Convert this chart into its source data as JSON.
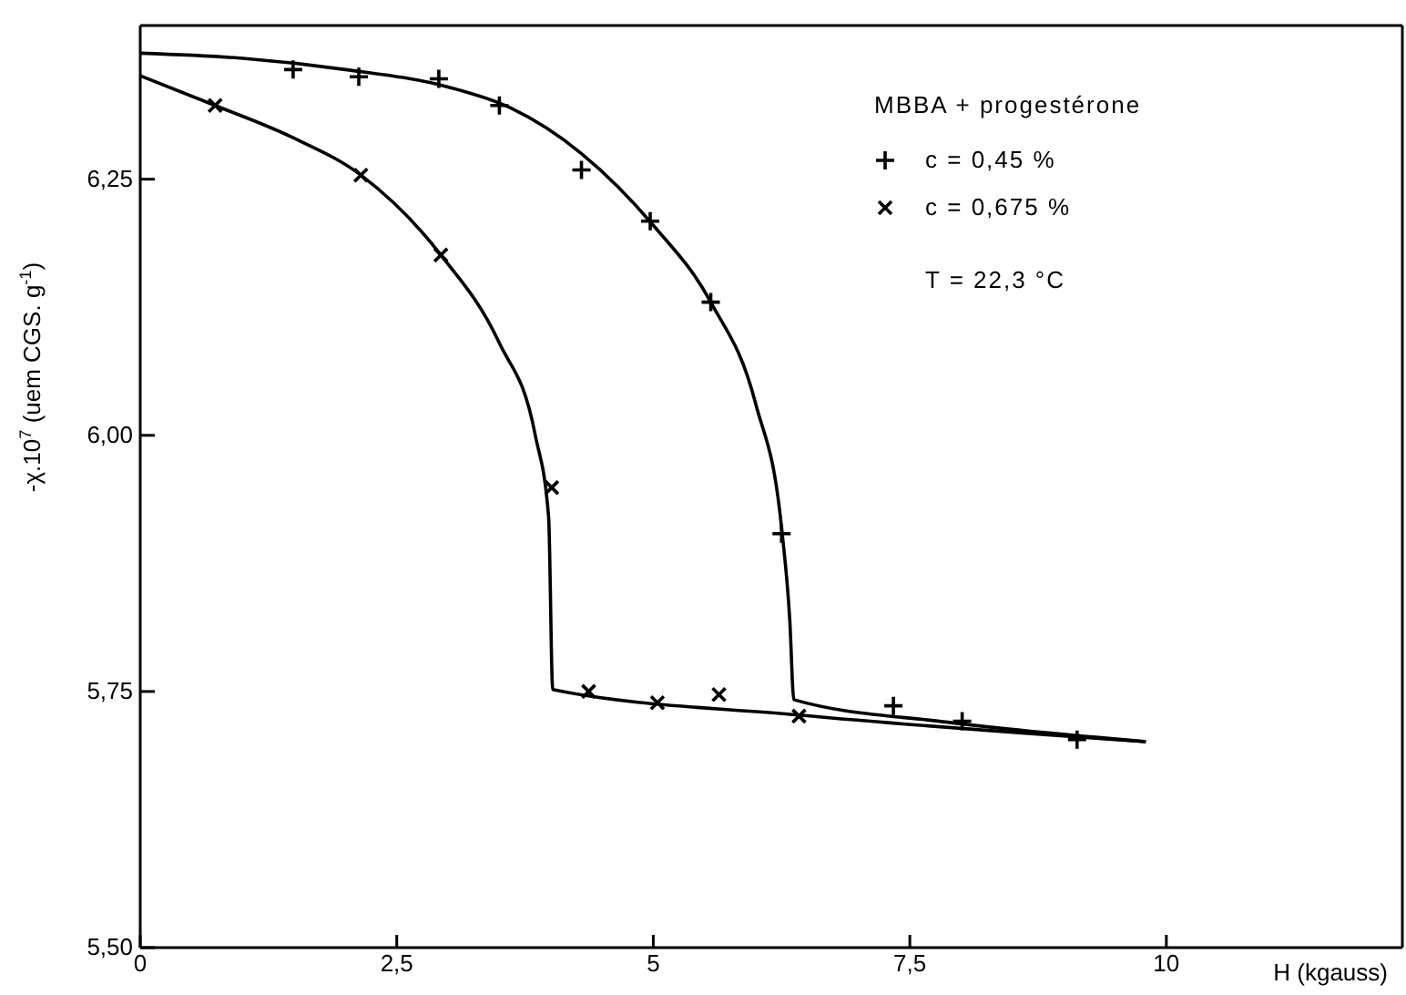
{
  "chart_data": {
    "type": "scatter",
    "xlabel": "H  (kgauss)",
    "ylabel": "-χ.10$^{7}$ (uem CGS. g$^{-1}$)",
    "legend_title": "MBBA + progestérone",
    "annotations": [
      "T = 22,3 °C"
    ],
    "xlim": [
      0,
      12.3
    ],
    "ylim": [
      5.5,
      6.4
    ],
    "xticks": [
      0,
      {
        "value": 2.5,
        "label": "2,5"
      },
      5,
      {
        "value": 7.5,
        "label": "7,5"
      },
      10
    ],
    "yticks": [
      {
        "value": 5.5,
        "label": "5,50"
      },
      {
        "value": 5.75,
        "label": "5,75"
      },
      {
        "value": 6,
        "label": "6,00"
      },
      {
        "value": 6.25,
        "label": "6,25"
      }
    ],
    "grid": false,
    "legend": "top right",
    "series": [
      {
        "name": "c = 0,45 %",
        "marker": "cross",
        "color": "#000000",
        "x": [
          1.49,
          2.13,
          2.91,
          3.5,
          4.3,
          4.97,
          5.56,
          6.25,
          7.34,
          8.01,
          9.13
        ],
        "values": [
          6.357,
          6.35,
          6.348,
          6.322,
          6.259,
          6.209,
          6.13,
          5.904,
          5.736,
          5.721,
          5.703
        ]
      },
      {
        "name": "c = 0,675 %",
        "marker": "x",
        "color": "#000000",
        "x": [
          0.73,
          2.15,
          2.93,
          4.01,
          4.37,
          5.04,
          5.64,
          6.42
        ],
        "values": [
          6.322,
          6.254,
          6.176,
          5.949,
          5.75,
          5.739,
          5.747,
          5.726
        ]
      },
      {
        "type": "line",
        "marker": "none",
        "line_style": "solid",
        "color": "#000000",
        "x": [
          0,
          1,
          2,
          3,
          3.6,
          4.3,
          5,
          5.56,
          6,
          6.25,
          6.33,
          6.37,
          7.87,
          9.8
        ],
        "values": [
          6.373,
          6.368,
          6.357,
          6.34,
          6.32,
          6.275,
          6.205,
          6.13,
          6.03,
          5.91,
          5.82,
          5.742,
          5.72,
          5.701
        ]
      },
      {
        "type": "line",
        "marker": "none",
        "line_style": "solid",
        "color": "#000000",
        "x": [
          0,
          0.73,
          1.5,
          2.15,
          2.93,
          3.5,
          3.85,
          3.98,
          4.02,
          6.42,
          9.8
        ],
        "values": [
          6.351,
          6.322,
          6.29,
          6.254,
          6.176,
          6.09,
          6,
          5.92,
          5.752,
          5.727,
          5.701
        ]
      }
    ]
  }
}
